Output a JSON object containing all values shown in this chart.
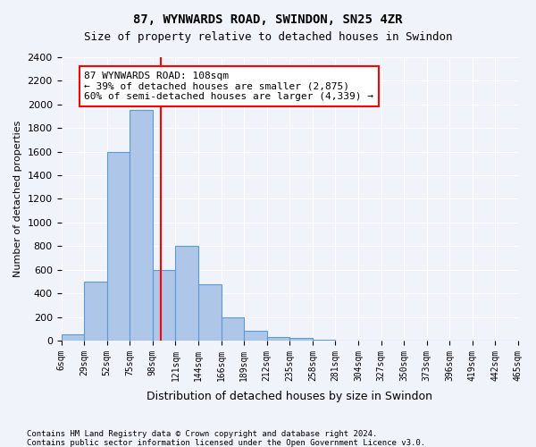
{
  "title": "87, WYNWARDS ROAD, SWINDON, SN25 4ZR",
  "subtitle": "Size of property relative to detached houses in Swindon",
  "xlabel": "Distribution of detached houses by size in Swindon",
  "ylabel": "Number of detached properties",
  "footnote1": "Contains HM Land Registry data © Crown copyright and database right 2024.",
  "footnote2": "Contains public sector information licensed under the Open Government Licence v3.0.",
  "bin_labels": [
    "6sqm",
    "29sqm",
    "52sqm",
    "75sqm",
    "98sqm",
    "121sqm",
    "144sqm",
    "166sqm",
    "189sqm",
    "212sqm",
    "235sqm",
    "258sqm",
    "281sqm",
    "304sqm",
    "327sqm",
    "350sqm",
    "373sqm",
    "396sqm",
    "419sqm",
    "442sqm",
    "465sqm"
  ],
  "bar_heights": [
    50,
    500,
    1600,
    1950,
    600,
    800,
    475,
    200,
    80,
    30,
    20,
    10,
    0,
    0,
    0,
    0,
    0,
    0,
    0,
    0
  ],
  "bar_color": "#aec6e8",
  "bar_edge_color": "#5b9bd5",
  "vline_x": 4.35,
  "vline_color": "red",
  "ylim": [
    0,
    2400
  ],
  "yticks": [
    0,
    200,
    400,
    600,
    800,
    1000,
    1200,
    1400,
    1600,
    1800,
    2000,
    2200,
    2400
  ],
  "annotation_text": "87 WYNWARDS ROAD: 108sqm\n← 39% of detached houses are smaller (2,875)\n60% of semi-detached houses are larger (4,339) →",
  "annotation_box_color": "white",
  "annotation_box_edge": "red",
  "background_color": "#f0f4fa",
  "grid_color": "white"
}
